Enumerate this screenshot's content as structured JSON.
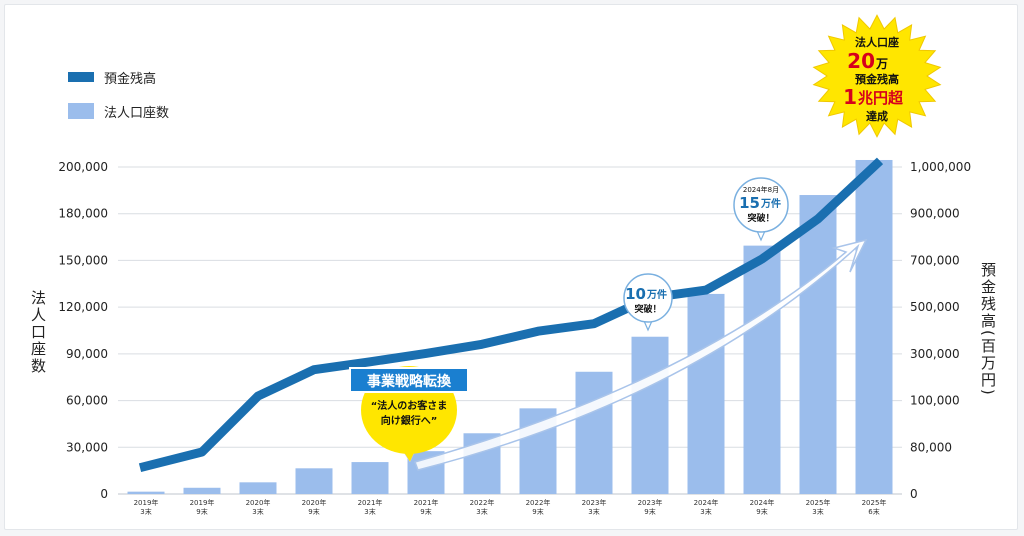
{
  "legend": {
    "line_label": "預金残高",
    "bar_label": "法人口座数"
  },
  "axes": {
    "left_label": "法人口座数",
    "right_label": "預金残高(百万円)"
  },
  "callouts": {
    "strategy_banner": "事業戦略転換",
    "strategy_text_1": "“法人のお客さま",
    "strategy_text_2": "向け銀行へ”",
    "b10_num": "10",
    "b10_unit": "万件",
    "b10_line2": "突破！",
    "b15_date": "2024年8月",
    "b15_num": "15",
    "b15_unit": "万件",
    "b15_line2": "突破！",
    "star_1": "法人口座",
    "star_2_num": "20",
    "star_2_unit": "万",
    "star_3": "預金残高",
    "star_4_num": "1",
    "star_4_rest": "兆円超",
    "star_5": "達成"
  },
  "colors": {
    "bar": "#9bbdec",
    "line": "#1a6fb0",
    "star": "#ffe600",
    "star_text": "#d6001c",
    "bubble_yellow": "#ffe600",
    "banner": "#1a7fd0"
  },
  "chart_data": {
    "type": "bar",
    "categories": [
      [
        "2019年",
        "3末"
      ],
      [
        "2019年",
        "9末"
      ],
      [
        "2020年",
        "3末"
      ],
      [
        "2020年",
        "9末"
      ],
      [
        "2021年",
        "3末"
      ],
      [
        "2021年",
        "9末"
      ],
      [
        "2022年",
        "3末"
      ],
      [
        "2022年",
        "9末"
      ],
      [
        "2023年",
        "3末"
      ],
      [
        "2023年",
        "9末"
      ],
      [
        "2024年",
        "3末"
      ],
      [
        "2024年",
        "9末"
      ],
      [
        "2025年",
        "3末"
      ],
      [
        "2025年",
        "6末"
      ]
    ],
    "left_ticks": [
      "0",
      "30,000",
      "60,000",
      "90,000",
      "120,000",
      "150,000",
      "180,000",
      "200,000"
    ],
    "right_ticks": [
      "0",
      "80,000",
      "100,000",
      "300,000",
      "500,000",
      "700,000",
      "900,000",
      "1,000,000"
    ],
    "series": [
      {
        "name": "法人口座数",
        "kind": "bar",
        "values": [
          1500,
          4000,
          7500,
          16500,
          20500,
          27500,
          39000,
          55000,
          78500,
          101000,
          128500,
          159500,
          188000,
          203000
        ]
      },
      {
        "name": "預金残高",
        "kind": "line",
        "values": [
          45000,
          72000,
          119000,
          232000,
          266000,
          302000,
          341000,
          397000,
          429000,
          540000,
          573000,
          706000,
          878000,
          1013000
        ]
      }
    ]
  }
}
